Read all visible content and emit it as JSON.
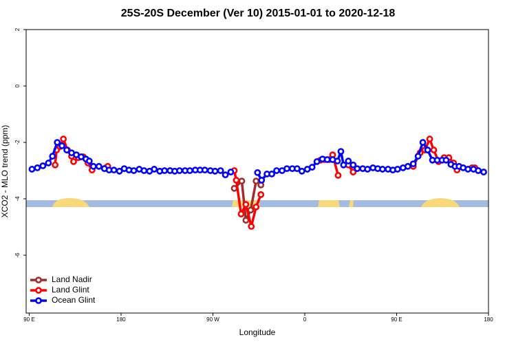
{
  "chart_data": {
    "type": "line",
    "title": "25S-20S December (Ver 10)   2015-01-01 to 2020-12-18",
    "x_label": "Longitude",
    "y_label": "XCO2 - MLO trend (ppm)",
    "xlim": [
      87,
      540
    ],
    "ylim": [
      -8.05,
      2
    ],
    "xticks": [
      {
        "value": 90,
        "label": "90 E"
      },
      {
        "value": 180,
        "label": "180"
      },
      {
        "value": 270,
        "label": "90 W"
      },
      {
        "value": 360,
        "label": "0"
      },
      {
        "value": 450,
        "label": "90 E"
      },
      {
        "value": 540,
        "label": "180"
      }
    ],
    "yticks": [
      2,
      0,
      -2,
      -4,
      -6
    ],
    "legend": "bottom-left",
    "series": [
      {
        "name": "Land Nadir",
        "color": "#a52a2a",
        "x": [
          290.9,
          298.3,
          302.3,
          307,
          312.3,
          317
        ],
        "values": [
          -3.63,
          -3.37,
          -4.76,
          -4.4,
          -3.37,
          -3.51
        ]
      },
      {
        "name": "Land Glint",
        "color": "#ff0000",
        "x": [
          115.4,
          116.8,
          120.1,
          123.5,
          127.5,
          131.5,
          133.5,
          138.2,
          142.9,
          147.6,
          151.6,
          158,
          165,
          167,
          200,
          290.9,
          292.9,
          297.6,
          302.3,
          307.6,
          312.3,
          317,
          350,
          375.3,
          379.3,
          384,
          387.3,
          392.7,
          398,
          402.7,
          407.4,
          440,
          466.3,
          473,
          477.7,
          482.4,
          486.4,
          491.1,
          496.5,
          501.2,
          505.8,
          509.2,
          515,
          523.9,
          526.6
        ],
        "values": [
          -2.8,
          -2.27,
          -2.15,
          -1.88,
          -2.27,
          -2.49,
          -2.68,
          -2.54,
          -2.51,
          -2.73,
          -2.98,
          null,
          -2.9,
          -2.85,
          null,
          -3.0,
          -3.34,
          -4.54,
          -4.2,
          -4.98,
          -4.29,
          -3.85,
          null,
          -2.63,
          -2.61,
          -2.61,
          -2.44,
          -3.17,
          null,
          -2.8,
          -3.05,
          null,
          -2.85,
          -2.37,
          -2.27,
          -1.88,
          -2.27,
          -2.68,
          -2.54,
          -2.54,
          -2.73,
          -2.98,
          null,
          -2.9,
          -2.9
        ]
      },
      {
        "name": "Ocean Glint",
        "color": "#0000ff",
        "x": [
          92.7,
          98,
          103.4,
          108.8,
          112.8,
          117.5,
          122.1,
          126.8,
          131.5,
          136.2,
          140.9,
          145.6,
          148.9,
          152.9,
          158.3,
          163.7,
          168.3,
          173,
          178.4,
          183.1,
          187.8,
          192.5,
          197.8,
          202.5,
          207.9,
          212.5,
          217.9,
          222.6,
          228,
          232.6,
          237.3,
          242.7,
          247.4,
          252.7,
          257.4,
          262.1,
          267.5,
          272.1,
          277.5,
          282.2,
          287.5,
          300,
          313.7,
          317.7,
          323,
          327.7,
          332.4,
          337.8,
          342.5,
          347.8,
          352.5,
          357.2,
          362.5,
          367.2,
          371.9,
          377.3,
          382,
          387.3,
          392,
          395.4,
          398,
          402.7,
          407.4,
          411.4,
          416.8,
          421.5,
          426.8,
          431.5,
          436.2,
          441.6,
          446.3,
          450.9,
          456.3,
          461,
          466.3,
          471,
          475.7,
          480.4,
          485.1,
          489.8,
          494.5,
          498.5,
          503.2,
          507.2,
          511.2,
          515.2,
          519.9,
          525.3,
          530,
          535.3
        ],
        "values": [
          -2.95,
          -2.9,
          -2.83,
          -2.73,
          -2.49,
          -2.0,
          -2.12,
          -2.27,
          -2.37,
          -2.44,
          -2.51,
          -2.59,
          -2.66,
          -2.85,
          -2.85,
          -2.93,
          -2.98,
          -2.98,
          -3.02,
          -2.93,
          -2.98,
          -3.0,
          -2.95,
          -3.0,
          -3.02,
          -2.95,
          -3.02,
          -3.0,
          -3.0,
          -3.02,
          -3.0,
          -3.0,
          -3.0,
          -2.98,
          -2.98,
          -2.98,
          -3.0,
          -3.02,
          -3.0,
          -3.15,
          -3.05,
          null,
          -3.07,
          -3.34,
          -3.12,
          -3.12,
          -3.0,
          -3.0,
          -2.93,
          -2.93,
          -2.93,
          -3.02,
          -2.95,
          -2.88,
          -2.68,
          -2.59,
          -2.61,
          -2.61,
          -2.66,
          -2.32,
          -2.8,
          -2.66,
          -2.8,
          -2.93,
          -2.93,
          -2.95,
          -2.9,
          -2.93,
          -2.95,
          -2.95,
          -2.98,
          -2.95,
          -2.9,
          -2.85,
          -2.76,
          -2.49,
          -2.0,
          -2.27,
          -2.63,
          -2.63,
          -2.63,
          -2.63,
          -2.78,
          -2.85,
          -2.85,
          -2.9,
          -2.95,
          -2.95,
          -3.0,
          -3.05
        ]
      }
    ]
  }
}
